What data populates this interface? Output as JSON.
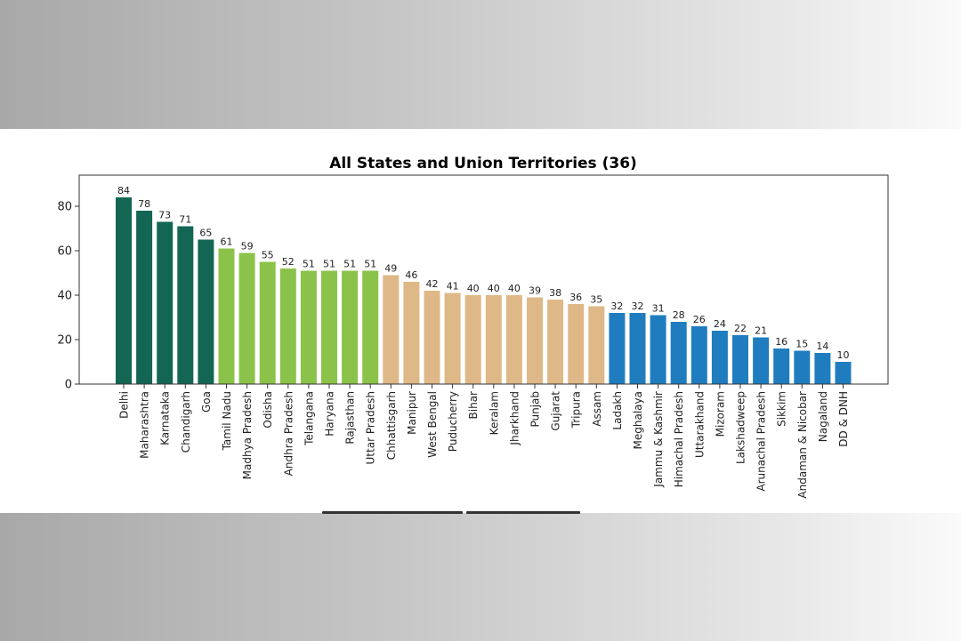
{
  "chart_data": {
    "type": "bar",
    "title": "All States and Union Territories (36)",
    "xlabel": "",
    "ylabel": "",
    "ylim": [
      0,
      94
    ],
    "yticks": [
      0,
      20,
      40,
      60,
      80
    ],
    "grid": false,
    "legend": "none",
    "categories": [
      "Delhi",
      "Maharashtra",
      "Karnataka",
      "Chandigarh",
      "Goa",
      "Tamil Nadu",
      "Madhya Pradesh",
      "Odisha",
      "Andhra Pradesh",
      "Telangana",
      "Haryana",
      "Rajasthan",
      "Uttar Pradesh",
      "Chhattisgarh",
      "Manipur",
      "West Bengal",
      "Puducherry",
      "Bihar",
      "Keralam",
      "Jharkhand",
      "Punjab",
      "Gujarat",
      "Tripura",
      "Assam",
      "Ladakh",
      "Meghalaya",
      "Jammu & Kashmir",
      "Himachal Pradesh",
      "Uttarakhand",
      "Mizoram",
      "Lakshadweep",
      "Arunachal Pradesh",
      "Sikkim",
      "Andaman & Nicobar",
      "Nagaland",
      "DD & DNH"
    ],
    "values": [
      84,
      78,
      73,
      71,
      65,
      61,
      59,
      55,
      52,
      51,
      51,
      51,
      51,
      49,
      46,
      42,
      41,
      40,
      40,
      40,
      39,
      38,
      36,
      35,
      32,
      32,
      31,
      28,
      26,
      24,
      22,
      21,
      16,
      15,
      14,
      10
    ],
    "colors": [
      "#136654",
      "#136654",
      "#136654",
      "#136654",
      "#136654",
      "#8bc34a",
      "#8bc34a",
      "#8bc34a",
      "#8bc34a",
      "#8bc34a",
      "#8bc34a",
      "#8bc34a",
      "#8bc34a",
      "#dfb887",
      "#dfb887",
      "#dfb887",
      "#dfb887",
      "#dfb887",
      "#dfb887",
      "#dfb887",
      "#dfb887",
      "#dfb887",
      "#dfb887",
      "#dfb887",
      "#1f7dbf",
      "#1f7dbf",
      "#1f7dbf",
      "#1f7dbf",
      "#1f7dbf",
      "#1f7dbf",
      "#1f7dbf",
      "#1f7dbf",
      "#1f7dbf",
      "#1f7dbf",
      "#1f7dbf",
      "#1f7dbf"
    ]
  }
}
